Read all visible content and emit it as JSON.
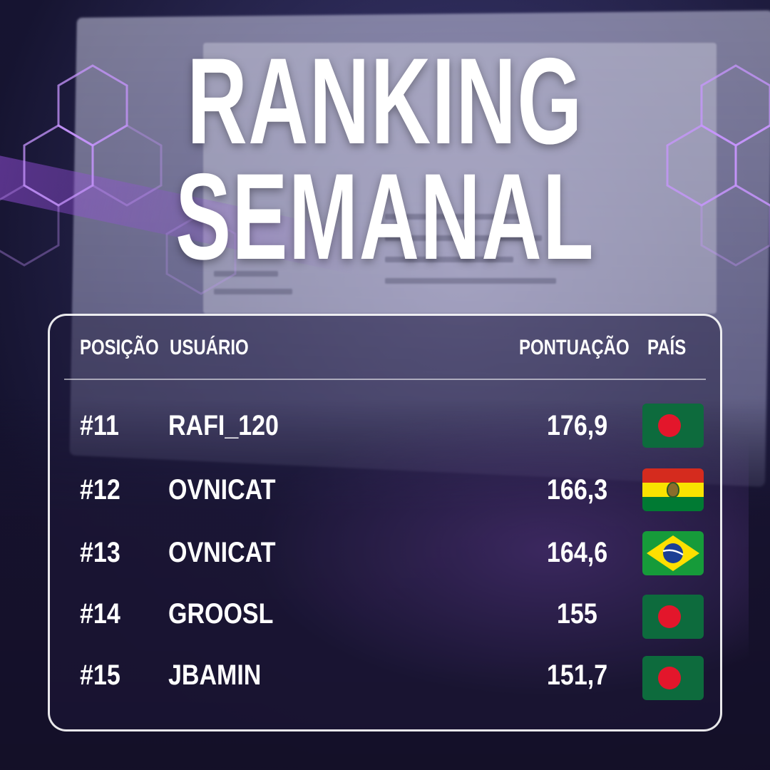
{
  "title": {
    "line1": "RANKING",
    "line2": "SEMANAL"
  },
  "table": {
    "headers": {
      "position": "POSIÇÃO",
      "user": "USUÁRIO",
      "score": "PONTUAÇÃO",
      "country": "PAÍS"
    },
    "rows": [
      {
        "position": "#11",
        "user": "RAFI_120",
        "score": "176,9",
        "country_flag": "bangladesh-flag"
      },
      {
        "position": "#12",
        "user": "OVNICAT",
        "score": "166,3",
        "country_flag": "bolivia-flag"
      },
      {
        "position": "#13",
        "user": "OVNICAT",
        "score": "164,6",
        "country_flag": "brazil-flag"
      },
      {
        "position": "#14",
        "user": "GROOSL",
        "score": "155",
        "country_flag": "bangladesh-flag"
      },
      {
        "position": "#15",
        "user": "JBAMIN",
        "score": "151,7",
        "country_flag": "bangladesh-flag"
      }
    ]
  },
  "colors": {
    "accent": "#9b5de5",
    "panel_border": "#ffffff",
    "text": "#ffffff",
    "bangladesh_green": "#0d6b3d",
    "bangladesh_red": "#e3162b"
  }
}
